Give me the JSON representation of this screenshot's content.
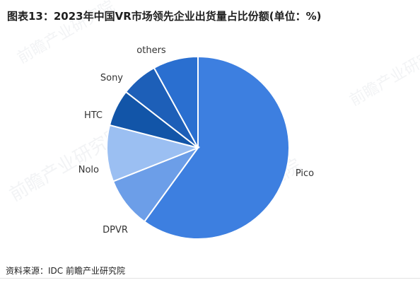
{
  "title": "图表13：2023年中国VR市场领先企业出货量占比份额(单位：%)",
  "source": "资料来源：IDC 前瞻产业研究院",
  "watermark": "前瞻产业研究院",
  "chart_data": {
    "type": "pie",
    "title": "图表13：2023年中国VR市场领先企业出货量占比份额(单位：%)",
    "unit": "%",
    "slices": [
      {
        "label": "Pico",
        "value": 60.0,
        "color": "#3d7fe0"
      },
      {
        "label": "DPVR",
        "value": 9.0,
        "color": "#6c9ee8"
      },
      {
        "label": "Nolo",
        "value": 10.0,
        "color": "#9bbff2"
      },
      {
        "label": "HTC",
        "value": 6.5,
        "color": "#1255a8"
      },
      {
        "label": "Sony",
        "value": 6.5,
        "color": "#1d5fb8"
      },
      {
        "label": "others",
        "value": 8.0,
        "color": "#2a6fd0"
      }
    ],
    "start_angle_deg": 0,
    "direction": "clockwise",
    "legend": "none (direct labels)"
  }
}
